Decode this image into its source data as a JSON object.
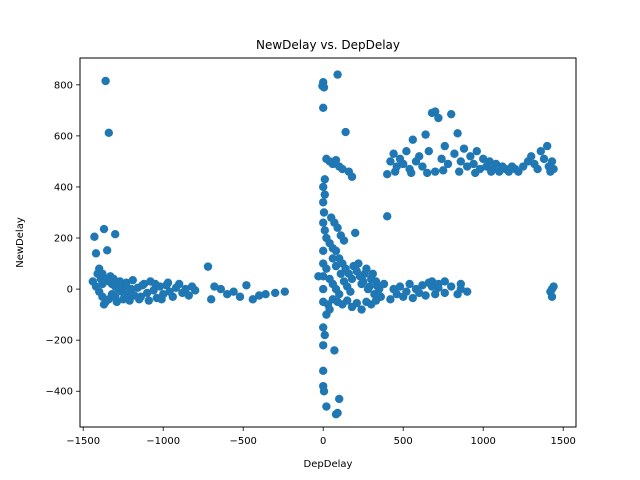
{
  "chart_data": {
    "type": "scatter",
    "title": "NewDelay vs. DepDelay",
    "xlabel": "DepDelay",
    "ylabel": "NewDelay",
    "xlim": [
      -1520,
      1580
    ],
    "ylim": [
      -540,
      905
    ],
    "xticks": [
      -1500,
      -1000,
      -500,
      0,
      500,
      1000,
      1500
    ],
    "yticks": [
      -400,
      -200,
      0,
      200,
      400,
      600,
      800
    ],
    "grid": false,
    "legend": "none",
    "marker_color": "#1f77b4",
    "series": [
      {
        "points": [
          [
            -1360,
            815
          ],
          [
            -1340,
            612
          ],
          [
            -1430,
            205
          ],
          [
            -1370,
            235
          ],
          [
            -1300,
            215
          ],
          [
            -1350,
            152
          ],
          [
            -1420,
            140
          ],
          [
            -1400,
            80
          ],
          [
            -1380,
            60
          ],
          [
            -1360,
            40
          ],
          [
            -1340,
            30
          ],
          [
            -1320,
            20
          ],
          [
            -1300,
            10
          ],
          [
            -1280,
            0
          ],
          [
            -1440,
            30
          ],
          [
            -1420,
            10
          ],
          [
            -1400,
            -10
          ],
          [
            -1380,
            -30
          ],
          [
            -1360,
            -50
          ],
          [
            -1340,
            -40
          ],
          [
            -1320,
            -20
          ],
          [
            -1300,
            -30
          ],
          [
            -1260,
            -10
          ],
          [
            -1240,
            10
          ],
          [
            -1220,
            -20
          ],
          [
            -1200,
            0
          ],
          [
            -1180,
            -25
          ],
          [
            -1160,
            5
          ],
          [
            -1140,
            -30
          ],
          [
            -1120,
            20
          ],
          [
            -1100,
            -15
          ],
          [
            -1080,
            30
          ],
          [
            -1060,
            -5
          ],
          [
            -1040,
            -35
          ],
          [
            -1020,
            10
          ],
          [
            -1000,
            -20
          ],
          [
            -980,
            15
          ],
          [
            -960,
            -10
          ],
          [
            -940,
            -30
          ],
          [
            -920,
            5
          ],
          [
            -900,
            20
          ],
          [
            -880,
            -15
          ],
          [
            -860,
            0
          ],
          [
            -840,
            -25
          ],
          [
            -820,
            10
          ],
          [
            -800,
            -5
          ],
          [
            -720,
            88
          ],
          [
            -700,
            -40
          ],
          [
            -680,
            10
          ],
          [
            -640,
            0
          ],
          [
            -600,
            -20
          ],
          [
            -560,
            -10
          ],
          [
            -520,
            -30
          ],
          [
            -480,
            15
          ],
          [
            -440,
            -40
          ],
          [
            -400,
            -25
          ],
          [
            -360,
            -20
          ],
          [
            -300,
            -15
          ],
          [
            -240,
            -10
          ],
          [
            -1410,
            60
          ],
          [
            -1390,
            40
          ],
          [
            -1380,
            20
          ],
          [
            -1370,
            -60
          ],
          [
            -1330,
            50
          ],
          [
            -1310,
            40
          ],
          [
            -1290,
            -50
          ],
          [
            -1270,
            30
          ],
          [
            -1250,
            -40
          ],
          [
            -1230,
            25
          ],
          [
            -1210,
            -45
          ],
          [
            -1190,
            35
          ],
          [
            -1150,
            -40
          ],
          [
            -1130,
            15
          ],
          [
            -1090,
            -45
          ],
          [
            -1050,
            20
          ],
          [
            -1010,
            -40
          ],
          [
            -970,
            25
          ],
          [
            0,
            810
          ],
          [
            5,
            790
          ],
          [
            -5,
            795
          ],
          [
            0,
            710
          ],
          [
            90,
            840
          ],
          [
            20,
            510
          ],
          [
            40,
            500
          ],
          [
            60,
            490
          ],
          [
            80,
            505
          ],
          [
            100,
            480
          ],
          [
            120,
            470
          ],
          [
            140,
            615
          ],
          [
            160,
            460
          ],
          [
            180,
            440
          ],
          [
            10,
            430
          ],
          [
            0,
            400
          ],
          [
            10,
            370
          ],
          [
            0,
            340
          ],
          [
            5,
            300
          ],
          [
            0,
            260
          ],
          [
            10,
            230
          ],
          [
            20,
            200
          ],
          [
            40,
            180
          ],
          [
            60,
            160
          ],
          [
            80,
            150
          ],
          [
            100,
            120
          ],
          [
            120,
            100
          ],
          [
            140,
            80
          ],
          [
            160,
            60
          ],
          [
            180,
            40
          ],
          [
            200,
            220
          ],
          [
            220,
            100
          ],
          [
            240,
            20
          ],
          [
            260,
            60
          ],
          [
            280,
            0
          ],
          [
            300,
            40
          ],
          [
            320,
            -20
          ],
          [
            340,
            10
          ],
          [
            360,
            -30
          ],
          [
            380,
            20
          ],
          [
            400,
            285
          ],
          [
            420,
            -40
          ],
          [
            440,
            0
          ],
          [
            460,
            -20
          ],
          [
            480,
            10
          ],
          [
            500,
            -30
          ],
          [
            520,
            -10
          ],
          [
            540,
            20
          ],
          [
            560,
            -35
          ],
          [
            580,
            0
          ],
          [
            600,
            -15
          ],
          [
            620,
            15
          ],
          [
            640,
            -25
          ],
          [
            660,
            25
          ],
          [
            680,
            10
          ],
          [
            700,
            -20
          ],
          [
            720,
            5
          ],
          [
            760,
            -15
          ],
          [
            800,
            10
          ],
          [
            840,
            -20
          ],
          [
            860,
            0
          ],
          [
            0,
            -150
          ],
          [
            10,
            -180
          ],
          [
            0,
            -220
          ],
          [
            0,
            -320
          ],
          [
            0,
            -380
          ],
          [
            5,
            -400
          ],
          [
            20,
            -460
          ],
          [
            80,
            -490
          ],
          [
            90,
            -485
          ],
          [
            100,
            -430
          ],
          [
            70,
            -240
          ],
          [
            30,
            -60
          ],
          [
            60,
            -40
          ],
          [
            90,
            -50
          ],
          [
            120,
            -60
          ],
          [
            150,
            -45
          ],
          [
            180,
            -70
          ],
          [
            210,
            -55
          ],
          [
            240,
            -80
          ],
          [
            270,
            -50
          ],
          [
            300,
            -60
          ],
          [
            330,
            -45
          ],
          [
            0,
            150
          ],
          [
            0,
            100
          ],
          [
            0,
            50
          ],
          [
            0,
            0
          ],
          [
            0,
            -50
          ],
          [
            20,
            80
          ],
          [
            40,
            40
          ],
          [
            60,
            20
          ],
          [
            80,
            0
          ],
          [
            100,
            -20
          ],
          [
            20,
            -100
          ],
          [
            40,
            -80
          ],
          [
            60,
            120
          ],
          [
            80,
            90
          ],
          [
            110,
            60
          ],
          [
            130,
            30
          ],
          [
            150,
            10
          ],
          [
            170,
            -10
          ],
          [
            190,
            90
          ],
          [
            210,
            70
          ],
          [
            230,
            50
          ],
          [
            250,
            30
          ],
          [
            270,
            80
          ],
          [
            290,
            10
          ],
          [
            310,
            60
          ],
          [
            330,
            30
          ],
          [
            350,
            0
          ],
          [
            -30,
            50
          ],
          [
            50,
            280
          ],
          [
            70,
            260
          ],
          [
            90,
            240
          ],
          [
            110,
            210
          ],
          [
            130,
            190
          ],
          [
            400,
            450
          ],
          [
            420,
            500
          ],
          [
            440,
            530
          ],
          [
            460,
            480
          ],
          [
            480,
            510
          ],
          [
            500,
            490
          ],
          [
            520,
            540
          ],
          [
            540,
            470
          ],
          [
            560,
            585
          ],
          [
            580,
            500
          ],
          [
            600,
            520
          ],
          [
            620,
            480
          ],
          [
            640,
            605
          ],
          [
            660,
            540
          ],
          [
            680,
            690
          ],
          [
            700,
            695
          ],
          [
            720,
            670
          ],
          [
            740,
            510
          ],
          [
            760,
            560
          ],
          [
            780,
            490
          ],
          [
            800,
            685
          ],
          [
            820,
            530
          ],
          [
            840,
            610
          ],
          [
            860,
            500
          ],
          [
            880,
            550
          ],
          [
            900,
            480
          ],
          [
            920,
            520
          ],
          [
            940,
            490
          ],
          [
            960,
            540
          ],
          [
            980,
            470
          ],
          [
            1000,
            510
          ],
          [
            1020,
            480
          ],
          [
            1040,
            500
          ],
          [
            1060,
            470
          ],
          [
            1080,
            490
          ],
          [
            1100,
            460
          ],
          [
            1120,
            480
          ],
          [
            1140,
            470
          ],
          [
            1160,
            460
          ],
          [
            1180,
            480
          ],
          [
            1200,
            470
          ],
          [
            1220,
            460
          ],
          [
            1250,
            480
          ],
          [
            1280,
            500
          ],
          [
            1300,
            520
          ],
          [
            1320,
            490
          ],
          [
            1340,
            470
          ],
          [
            1360,
            540
          ],
          [
            1380,
            510
          ],
          [
            1400,
            560
          ],
          [
            1410,
            480
          ],
          [
            1420,
            460
          ],
          [
            1430,
            500
          ],
          [
            1440,
            470
          ],
          [
            650,
            455
          ],
          [
            700,
            460
          ],
          [
            750,
            465
          ],
          [
            850,
            460
          ],
          [
            950,
            455
          ],
          [
            1050,
            460
          ],
          [
            450,
            460
          ],
          [
            550,
            455
          ],
          [
            1430,
            0
          ],
          [
            1430,
            -30
          ],
          [
            1440,
            10
          ],
          [
            1420,
            -10
          ],
          [
            680,
            30
          ],
          [
            720,
            20
          ],
          [
            760,
            30
          ],
          [
            860,
            20
          ],
          [
            900,
            -10
          ]
        ]
      }
    ]
  }
}
